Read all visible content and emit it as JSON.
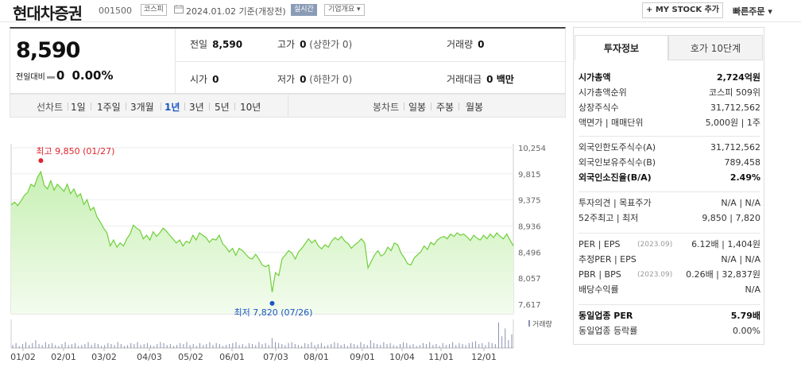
{
  "header": {
    "company_name": "현대차증권",
    "code": "001500",
    "market": "코스피",
    "date_text": "2024.01.02  기준(개장전)",
    "realtime_label": "실시간",
    "overview_label": "기업개요",
    "mystock_label": "+ MY STOCK 추가",
    "quick_order_label": "빠른주문"
  },
  "quote": {
    "price": "8,590",
    "change_label": "전일대비",
    "change_value": "0",
    "change_pct": "0.00%",
    "prev_close_label": "전일",
    "prev_close": "8,590",
    "high_label": "고가",
    "high": "0",
    "upper_limit": "(상한가 0)",
    "volume_label": "거래량",
    "volume": "0",
    "open_label": "시가",
    "open": "0",
    "low_label": "저가",
    "low": "0",
    "lower_limit": "(하한가 0)",
    "amount_label": "거래대금",
    "amount": "0 백만"
  },
  "period_bar": {
    "line_label": "선차트",
    "line_periods": [
      "1일",
      "1주일",
      "3개월",
      "1년",
      "3년",
      "5년",
      "10년"
    ],
    "selected": "1년",
    "candle_label": "봉차트",
    "candle_periods": [
      "일봉",
      "주봉",
      "월봉"
    ]
  },
  "chart_data": {
    "type": "area",
    "y_ticks": [
      "10,254",
      "9,815",
      "9,375",
      "8,936",
      "8,496",
      "8,057",
      "7,617"
    ],
    "ylim": [
      7617,
      10254
    ],
    "x_ticks": [
      "01/02",
      "02/01",
      "03/02",
      "04/03",
      "05/02",
      "06/01",
      "07/03",
      "08/01",
      "09/01",
      "10/04",
      "11/01",
      "12/01"
    ],
    "series": [
      {
        "values": [
          9290,
          9340,
          9280,
          9360,
          9450,
          9500,
          9640,
          9600,
          9760,
          9850,
          9620,
          9560,
          9700,
          9540,
          9640,
          9580,
          9520,
          9640,
          9480,
          9560,
          9430,
          9480,
          9300,
          9380,
          9200,
          9250,
          9090,
          9000,
          8900,
          8820,
          8600,
          8700,
          8580,
          8650,
          8600,
          8720,
          8800,
          8950,
          8900,
          8860,
          8720,
          8780,
          8700,
          8840,
          8760,
          8820,
          8900,
          8850,
          8780,
          8720,
          8650,
          8700,
          8600,
          8680,
          8650,
          8780,
          8700,
          8820,
          8780,
          8740,
          8660,
          8720,
          8700,
          8780,
          8640,
          8580,
          8500,
          8560,
          8440,
          8560,
          8520,
          8460,
          8400,
          8380,
          8460,
          8380,
          8280,
          8250,
          8280,
          7820,
          8150,
          8100,
          8380,
          8450,
          8520,
          8480,
          8380,
          8500,
          8560,
          8640,
          8720,
          8650,
          8700,
          8600,
          8550,
          8620,
          8580,
          8680,
          8740,
          8700,
          8760,
          8680,
          8640,
          8560,
          8620,
          8660,
          8720,
          8650,
          8230,
          8340,
          8450,
          8520,
          8430,
          8470,
          8580,
          8520,
          8650,
          8620,
          8480,
          8400,
          8300,
          8280,
          8400,
          8450,
          8500,
          8600,
          8540,
          8660,
          8620,
          8700,
          8740,
          8760,
          8720,
          8800,
          8760,
          8820,
          8780,
          8800,
          8750,
          8690,
          8780,
          8730,
          8700,
          8780,
          8720,
          8800,
          8740,
          8820,
          8760,
          8720,
          8800,
          8700,
          8600
        ]
      }
    ],
    "max_label": "최고 9,850 (01/27)",
    "min_label": "최저 7,820 (07/26)",
    "volume_label": "거래량",
    "volume_bars": [
      3,
      5,
      2,
      4,
      6,
      3,
      5,
      8,
      4,
      3,
      6,
      4,
      5,
      3,
      2,
      4,
      6,
      3,
      4,
      5,
      2,
      3,
      4,
      6,
      3,
      5,
      4,
      2,
      3,
      5,
      4,
      3,
      6,
      4,
      2,
      3,
      5,
      4,
      6,
      3,
      4,
      5,
      3,
      2,
      4,
      6,
      5,
      3,
      4,
      2,
      3,
      5,
      4,
      6,
      3,
      4,
      2,
      5,
      3,
      4,
      6,
      3,
      5,
      4,
      2,
      3,
      4,
      5,
      6,
      3,
      4,
      2,
      5,
      4,
      3,
      6,
      4,
      5,
      3,
      10,
      6,
      5,
      4,
      3,
      5,
      6,
      4,
      3,
      2,
      5,
      4,
      6,
      3,
      4,
      5,
      2,
      3,
      4,
      6,
      5,
      3,
      4,
      2,
      5,
      4,
      3,
      6,
      4,
      3,
      8,
      5,
      4,
      3,
      6,
      4,
      5,
      3,
      2,
      4,
      6,
      5,
      3,
      4,
      2,
      3,
      5,
      4,
      6,
      3,
      4,
      2,
      5,
      3,
      4,
      6,
      3,
      5,
      4,
      3,
      5,
      6,
      7,
      4,
      5,
      3,
      6,
      5,
      4,
      26,
      12,
      20,
      8,
      14
    ]
  },
  "invest_panel": {
    "tab_active": "투자정보",
    "tab_other": "호가 10단계",
    "group1": [
      {
        "k": "시가총액",
        "v": "2,724억원",
        "bold": true
      },
      {
        "k": "시가총액순위",
        "v": "코스피 509위"
      },
      {
        "k": "상장주식수",
        "v": "31,712,562"
      },
      {
        "k": "액면가 | 매매단위",
        "v": "5,000원 | 1주"
      }
    ],
    "group2": [
      {
        "k": "외국인한도주식수(A)",
        "v": "31,712,562"
      },
      {
        "k": "외국인보유주식수(B)",
        "v": "789,458"
      },
      {
        "k": "외국인소진율(B/A)",
        "v": "2.49%",
        "bold": true
      }
    ],
    "group3": [
      {
        "k": "투자의견 | 목표주가",
        "v": "N/A | N/A"
      },
      {
        "k": "52주최고 | 최저",
        "v": "9,850 | 7,820"
      }
    ],
    "group4": [
      {
        "k": "PER | EPS",
        "k_sub": "(2023.09)",
        "v": "6.12배 | 1,404원"
      },
      {
        "k": "추정PER | EPS",
        "v": "N/A | N/A"
      },
      {
        "k": "PBR | BPS",
        "k_sub": "(2023.09)",
        "v": "0.26배 | 32,837원"
      },
      {
        "k": "배당수익률",
        "v": "N/A"
      }
    ],
    "group5": [
      {
        "k": "동일업종 PER",
        "v": "5.79배",
        "bold": true
      },
      {
        "k": "동일업종 등락률",
        "v": "0.00%"
      }
    ]
  }
}
